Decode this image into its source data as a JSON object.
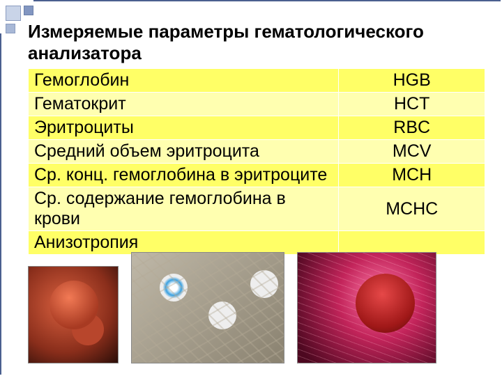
{
  "title": "Измеряемые параметры гематологического анализатора",
  "rows": [
    {
      "param": "Гемоглобин",
      "abbr": "HGB"
    },
    {
      "param": "Гематокрит",
      "abbr": "HCT"
    },
    {
      "param": "Эритроциты",
      "abbr": "RBC"
    },
    {
      "param": "Средний объем эритроцита",
      "abbr": "MCV"
    },
    {
      "param": "Ср. конц. гемоглобина в эритроците",
      "abbr": "MCH"
    },
    {
      "param": "Ср. содержание гемоглобина в крови",
      "abbr": "MCHC"
    },
    {
      "param": "Анизотропия",
      "abbr": ""
    }
  ],
  "colors": {
    "row_odd": "#ffff66",
    "row_even": "#ffffb0",
    "border": "#ffffff"
  }
}
